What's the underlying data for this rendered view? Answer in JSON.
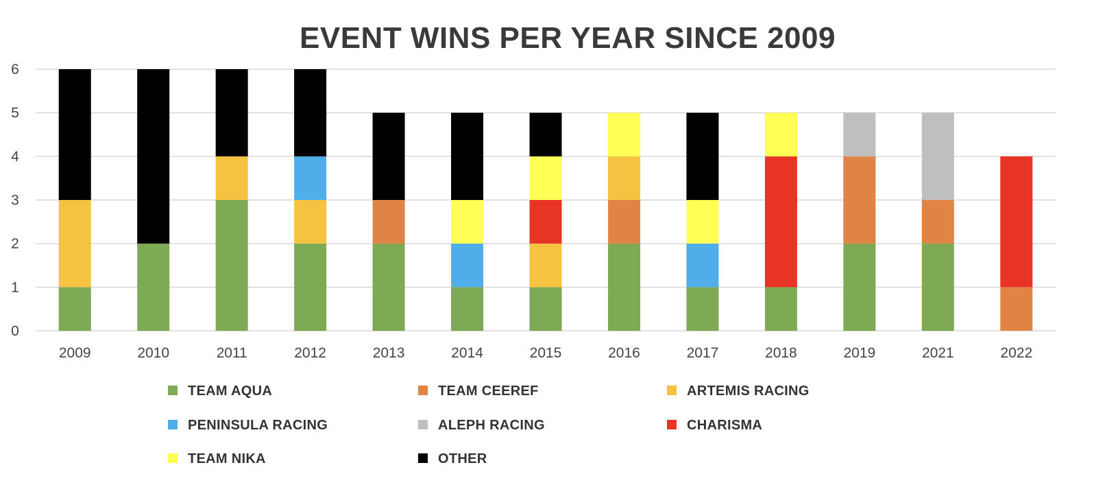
{
  "chart_data": {
    "type": "bar",
    "stacked": true,
    "title": "EVENT WINS PER YEAR SINCE 2009",
    "xlabel": "",
    "ylabel": "",
    "ylim": [
      0,
      6
    ],
    "yticks": [
      "0",
      "1",
      "2",
      "3",
      "4",
      "5",
      "6"
    ],
    "grid": true,
    "legend_position": "bottom",
    "categories": [
      "2009",
      "2010",
      "2011",
      "2012",
      "2013",
      "2014",
      "2015",
      "2016",
      "2017",
      "2018",
      "2019",
      "2021",
      "2022"
    ],
    "series": [
      {
        "name": "TEAM AQUA",
        "color": "#7faa55",
        "values": [
          1,
          2,
          3,
          2,
          2,
          1,
          1,
          2,
          1,
          1,
          2,
          2,
          0
        ]
      },
      {
        "name": "TEAM CEEREF",
        "color": "#df8444",
        "values": [
          0,
          0,
          0,
          0,
          1,
          0,
          0,
          1,
          0,
          0,
          2,
          1,
          1
        ]
      },
      {
        "name": "ARTEMIS RACING",
        "color": "#f5c242",
        "values": [
          2,
          0,
          1,
          1,
          0,
          0,
          1,
          1,
          0,
          0,
          0,
          0,
          0
        ]
      },
      {
        "name": "PENINSULA RACING",
        "color": "#4fadea",
        "values": [
          0,
          0,
          0,
          1,
          0,
          1,
          0,
          0,
          1,
          0,
          0,
          0,
          0
        ]
      },
      {
        "name": "ALEPH RACING",
        "color": "#bfbfbf",
        "values": [
          0,
          0,
          0,
          0,
          0,
          0,
          0,
          0,
          0,
          0,
          1,
          2,
          0
        ]
      },
      {
        "name": "CHARISMA",
        "color": "#e83424",
        "values": [
          0,
          0,
          0,
          0,
          0,
          0,
          1,
          0,
          0,
          3,
          0,
          0,
          3
        ]
      },
      {
        "name": "TEAM NIKA",
        "color": "#ffff55",
        "values": [
          0,
          0,
          0,
          0,
          0,
          1,
          1,
          1,
          1,
          1,
          0,
          0,
          0
        ]
      },
      {
        "name": "OTHER",
        "color": "#000000",
        "values": [
          3,
          4,
          2,
          2,
          2,
          2,
          1,
          0,
          2,
          0,
          0,
          0,
          0
        ]
      }
    ]
  }
}
